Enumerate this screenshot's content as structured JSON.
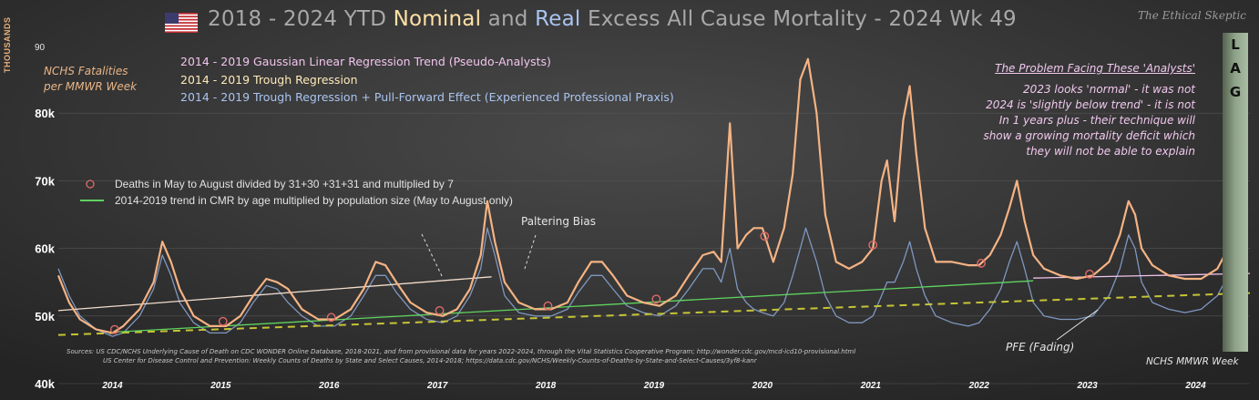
{
  "title": {
    "part1": "2018 - 2024 YTD ",
    "nominal": "Nominal",
    "part2": " and ",
    "real": "Real",
    "part3": " Excess All Cause Mortality - 2024 Wk 49"
  },
  "brand": "The Ethical Skeptic",
  "lag_letters": [
    "L",
    "A",
    "G"
  ],
  "y_axis_unit": "THOUSANDS",
  "y_axis_series_label": [
    "NCHS Fatalities",
    "per MMWR Week"
  ],
  "legend": [
    {
      "text": "2014 - 2019 Gaussian Linear Regression Trend (Pseudo-Analysts)",
      "color": "#f2c4ee"
    },
    {
      "text": "2014 - 2019 Trough Regression",
      "color": "#ffe9b8"
    },
    {
      "text": "2014 - 2019 Trough Regression + Pull-Forward Effect (Experienced Professional Praxis)",
      "color": "#a9c4f0"
    }
  ],
  "inner_legend": [
    {
      "text": "Deaths in May to August divided by 31+30 +31+31 and multiplied by 7",
      "marker": "circle",
      "color": "#e06a6a"
    },
    {
      "text": "2014-2019 trend in CMR by age multiplied by population size (May to August only)",
      "marker": "line",
      "color": "#5fd35f"
    }
  ],
  "problem_box": {
    "heading": "The Problem Facing These 'Analysts'",
    "lines": [
      "2023  looks 'normal' - it was not",
      "2024 is 'slightly below trend' - it is not",
      "In 1 years plus - their technique will",
      "show a growing mortality deficit which",
      "they will not be able to explain"
    ]
  },
  "annotations": {
    "paltering": "Paltering Bias",
    "pfe": "PFE (Fading)",
    "nchs_mmwr": "NCHS MMWR Week"
  },
  "sources": [
    "Sources:   US CDC/NCHS Underlying  Cause of Death on CDC WONDER Online Database, 2018-2021, and from provisional data for years 2022-2024, through the Vital Statistics Cooperative Program; http://wonder.cdc.gov/mcd-icd10-provisional.html",
    "US Center for Disease Control and Prevention: Weekly  Counts of Deaths by State and Select Causes, 2014-2018; https://data.cdc.gov/NCHS/Weekly-Counts-of-Deaths-by-State-and-Select-Causes/3yf8-kanr"
  ],
  "chart_data": {
    "type": "line",
    "xlabel": "",
    "ylabel": "THOUSANDS",
    "x_range": [
      2014.0,
      2025.0
    ],
    "ylim": [
      40,
      90
    ],
    "y_ticks": [
      40,
      50,
      60,
      70,
      80
    ],
    "y_tick_labels": [
      "40k",
      "50k",
      "60k",
      "70k",
      "80k"
    ],
    "y_top_label": "90",
    "x_ticks": [
      2014,
      2015,
      2016,
      2017,
      2018,
      2019,
      2020,
      2021,
      2022,
      2023,
      2024
    ],
    "x_tick_labels": [
      "2014",
      "2015",
      "2016",
      "2017",
      "2018",
      "2019",
      "2020",
      "2021",
      "2022",
      "2023",
      "2024"
    ],
    "series": [
      {
        "color": "#f5b383",
        "style": "solid",
        "points": [
          [
            2014.0,
            56
          ],
          [
            2014.1,
            52
          ],
          [
            2014.2,
            49.5
          ],
          [
            2014.35,
            48
          ],
          [
            2014.5,
            47.5
          ],
          [
            2014.6,
            48.5
          ],
          [
            2014.75,
            51
          ],
          [
            2014.88,
            55
          ],
          [
            2014.96,
            61
          ],
          [
            2015.04,
            58
          ],
          [
            2015.12,
            54
          ],
          [
            2015.25,
            50
          ],
          [
            2015.4,
            48.5
          ],
          [
            2015.55,
            48.5
          ],
          [
            2015.68,
            50
          ],
          [
            2015.8,
            53
          ],
          [
            2015.92,
            55.5
          ],
          [
            2016.02,
            55
          ],
          [
            2016.12,
            54
          ],
          [
            2016.25,
            51
          ],
          [
            2016.4,
            49.5
          ],
          [
            2016.55,
            49.5
          ],
          [
            2016.7,
            51
          ],
          [
            2016.82,
            54
          ],
          [
            2016.93,
            58
          ],
          [
            2017.02,
            57.5
          ],
          [
            2017.12,
            55
          ],
          [
            2017.25,
            52
          ],
          [
            2017.4,
            50.5
          ],
          [
            2017.55,
            50
          ],
          [
            2017.68,
            51
          ],
          [
            2017.8,
            54
          ],
          [
            2017.9,
            59
          ],
          [
            2017.96,
            67
          ],
          [
            2018.03,
            61
          ],
          [
            2018.12,
            55
          ],
          [
            2018.25,
            52
          ],
          [
            2018.4,
            51
          ],
          [
            2018.55,
            51
          ],
          [
            2018.7,
            52
          ],
          [
            2018.8,
            55
          ],
          [
            2018.92,
            58
          ],
          [
            2019.02,
            58
          ],
          [
            2019.12,
            56
          ],
          [
            2019.25,
            53
          ],
          [
            2019.4,
            52
          ],
          [
            2019.55,
            51.5
          ],
          [
            2019.7,
            53
          ],
          [
            2019.82,
            56
          ],
          [
            2019.95,
            59
          ],
          [
            2020.05,
            59.5
          ],
          [
            2020.12,
            58
          ],
          [
            2020.2,
            78.5
          ],
          [
            2020.27,
            60
          ],
          [
            2020.35,
            62
          ],
          [
            2020.42,
            63
          ],
          [
            2020.5,
            63
          ],
          [
            2020.6,
            58
          ],
          [
            2020.7,
            63
          ],
          [
            2020.78,
            71
          ],
          [
            2020.85,
            85
          ],
          [
            2020.92,
            88
          ],
          [
            2021.0,
            80
          ],
          [
            2021.08,
            65
          ],
          [
            2021.18,
            58
          ],
          [
            2021.3,
            57
          ],
          [
            2021.42,
            58
          ],
          [
            2021.52,
            60
          ],
          [
            2021.6,
            70
          ],
          [
            2021.65,
            73
          ],
          [
            2021.72,
            64
          ],
          [
            2021.8,
            79
          ],
          [
            2021.86,
            84
          ],
          [
            2021.92,
            74
          ],
          [
            2022.0,
            63
          ],
          [
            2022.1,
            58
          ],
          [
            2022.25,
            58
          ],
          [
            2022.4,
            57.5
          ],
          [
            2022.5,
            57.5
          ],
          [
            2022.6,
            59
          ],
          [
            2022.7,
            62
          ],
          [
            2022.78,
            66
          ],
          [
            2022.85,
            70
          ],
          [
            2022.92,
            64
          ],
          [
            2023.0,
            59
          ],
          [
            2023.1,
            57
          ],
          [
            2023.25,
            56
          ],
          [
            2023.4,
            55.5
          ],
          [
            2023.55,
            56
          ],
          [
            2023.7,
            58
          ],
          [
            2023.8,
            62
          ],
          [
            2023.88,
            67
          ],
          [
            2023.94,
            65
          ],
          [
            2024.0,
            60
          ],
          [
            2024.1,
            57.5
          ],
          [
            2024.25,
            56
          ],
          [
            2024.4,
            55.5
          ],
          [
            2024.55,
            55.5
          ],
          [
            2024.7,
            57
          ],
          [
            2024.8,
            60
          ],
          [
            2024.88,
            59
          ],
          [
            2024.93,
            58
          ],
          [
            2024.97,
            64.5
          ]
        ]
      },
      {
        "color": "#7f97c0",
        "style": "solid",
        "points": [
          [
            2014.0,
            57
          ],
          [
            2014.1,
            53
          ],
          [
            2014.2,
            50
          ],
          [
            2014.35,
            48
          ],
          [
            2014.5,
            47
          ],
          [
            2014.6,
            47.5
          ],
          [
            2014.75,
            50
          ],
          [
            2014.88,
            54
          ],
          [
            2014.96,
            59
          ],
          [
            2015.04,
            56
          ],
          [
            2015.12,
            52
          ],
          [
            2015.25,
            49
          ],
          [
            2015.4,
            47.5
          ],
          [
            2015.55,
            47.5
          ],
          [
            2015.68,
            49
          ],
          [
            2015.8,
            52
          ],
          [
            2015.92,
            54.5
          ],
          [
            2016.02,
            54
          ],
          [
            2016.12,
            52
          ],
          [
            2016.25,
            50
          ],
          [
            2016.4,
            48.5
          ],
          [
            2016.55,
            48.5
          ],
          [
            2016.7,
            50
          ],
          [
            2016.82,
            53
          ],
          [
            2016.93,
            56
          ],
          [
            2017.02,
            56
          ],
          [
            2017.12,
            53.5
          ],
          [
            2017.25,
            51
          ],
          [
            2017.4,
            49.5
          ],
          [
            2017.55,
            49
          ],
          [
            2017.68,
            50
          ],
          [
            2017.8,
            53
          ],
          [
            2017.9,
            57
          ],
          [
            2017.96,
            63
          ],
          [
            2018.03,
            59
          ],
          [
            2018.12,
            53
          ],
          [
            2018.25,
            50.5
          ],
          [
            2018.4,
            50
          ],
          [
            2018.55,
            50
          ],
          [
            2018.7,
            51
          ],
          [
            2018.8,
            53.5
          ],
          [
            2018.92,
            56
          ],
          [
            2019.02,
            56
          ],
          [
            2019.12,
            54
          ],
          [
            2019.25,
            51.5
          ],
          [
            2019.4,
            50.5
          ],
          [
            2019.55,
            50
          ],
          [
            2019.7,
            51.5
          ],
          [
            2019.82,
            54
          ],
          [
            2019.95,
            57
          ],
          [
            2020.05,
            57
          ],
          [
            2020.12,
            55
          ],
          [
            2020.2,
            60
          ],
          [
            2020.27,
            54
          ],
          [
            2020.35,
            52
          ],
          [
            2020.42,
            51
          ],
          [
            2020.5,
            50.5
          ],
          [
            2020.6,
            50
          ],
          [
            2020.7,
            52
          ],
          [
            2020.78,
            56
          ],
          [
            2020.85,
            60
          ],
          [
            2020.9,
            63
          ],
          [
            2021.0,
            58
          ],
          [
            2021.08,
            53
          ],
          [
            2021.18,
            50
          ],
          [
            2021.3,
            49
          ],
          [
            2021.42,
            49
          ],
          [
            2021.52,
            50
          ],
          [
            2021.6,
            53
          ],
          [
            2021.65,
            55
          ],
          [
            2021.72,
            55
          ],
          [
            2021.8,
            58
          ],
          [
            2021.86,
            61
          ],
          [
            2021.92,
            57
          ],
          [
            2022.0,
            53
          ],
          [
            2022.1,
            50
          ],
          [
            2022.25,
            49
          ],
          [
            2022.4,
            48.5
          ],
          [
            2022.5,
            49
          ],
          [
            2022.6,
            51
          ],
          [
            2022.7,
            54
          ],
          [
            2022.78,
            58
          ],
          [
            2022.85,
            61
          ],
          [
            2022.92,
            57
          ],
          [
            2023.0,
            52
          ],
          [
            2023.1,
            50
          ],
          [
            2023.25,
            49.5
          ],
          [
            2023.4,
            49.5
          ],
          [
            2023.55,
            50
          ],
          [
            2023.7,
            53
          ],
          [
            2023.8,
            57
          ],
          [
            2023.88,
            62
          ],
          [
            2023.94,
            60
          ],
          [
            2024.0,
            55
          ],
          [
            2024.1,
            52
          ],
          [
            2024.25,
            51
          ],
          [
            2024.4,
            50.5
          ],
          [
            2024.55,
            51
          ],
          [
            2024.7,
            53
          ],
          [
            2024.8,
            56
          ],
          [
            2024.88,
            55
          ],
          [
            2024.93,
            54
          ],
          [
            2024.97,
            56
          ]
        ]
      },
      {
        "color": "#5fd35f",
        "style": "solid",
        "points": [
          [
            2014.5,
            47.6
          ],
          [
            2023.0,
            55.2
          ]
        ]
      },
      {
        "color": "#c6c436",
        "style": "dashed",
        "points": [
          [
            2014.0,
            47.2
          ],
          [
            2025.0,
            53.4
          ]
        ]
      },
      {
        "color": "#f2c4ee",
        "style": "solid",
        "points": [
          [
            2023.0,
            55.6
          ],
          [
            2025.0,
            56.3
          ]
        ]
      },
      {
        "color": "#f2dccb",
        "style": "solid",
        "points": [
          [
            2014.0,
            50.8
          ],
          [
            2018.0,
            55.8
          ]
        ]
      }
    ],
    "markers": [
      [
        2014.52,
        48.0
      ],
      [
        2015.52,
        49.2
      ],
      [
        2016.52,
        49.8
      ],
      [
        2017.52,
        50.8
      ],
      [
        2018.52,
        51.5
      ],
      [
        2019.52,
        52.5
      ],
      [
        2020.52,
        61.8
      ],
      [
        2021.52,
        60.5
      ],
      [
        2022.52,
        57.8
      ],
      [
        2023.52,
        56.2
      ]
    ],
    "marker_color": "#e06a6a"
  }
}
